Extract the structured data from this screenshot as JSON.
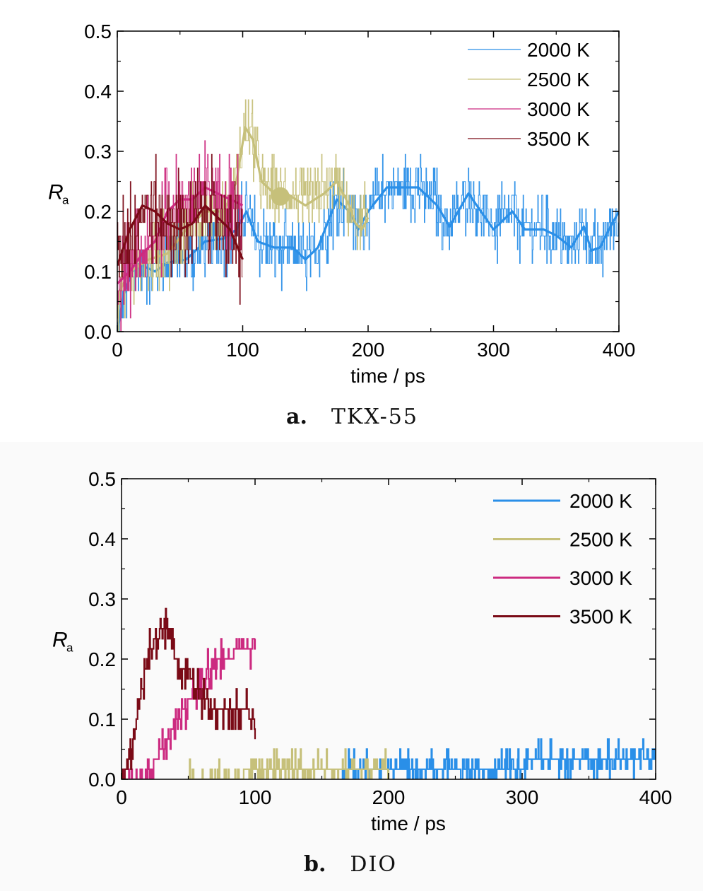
{
  "figure": {
    "caption_a": {
      "letter": "a.",
      "name": "TKX-55"
    },
    "caption_b": {
      "letter": "b.",
      "name": "DIO"
    }
  },
  "chart_data": [
    {
      "type": "line",
      "panel": "a",
      "xlabel": "time / ps",
      "ylabel": "R",
      "ylabel_sub": "a",
      "xlim": [
        0,
        400
      ],
      "ylim": [
        0.0,
        0.5
      ],
      "xticks": [
        "0",
        "100",
        "200",
        "300",
        "400"
      ],
      "yticks": [
        "0.0",
        "0.1",
        "0.2",
        "0.3",
        "0.4",
        "0.5"
      ],
      "grid": false,
      "legend_position": "top-right",
      "series": [
        {
          "name": "2000 K",
          "color": "#2a8fe8",
          "x_range": [
            0,
            400
          ],
          "noise": 0.045,
          "smooth_points": [
            [
              0,
              0.0
            ],
            [
              5,
              0.06
            ],
            [
              12,
              0.1
            ],
            [
              20,
              0.11
            ],
            [
              30,
              0.1
            ],
            [
              40,
              0.115
            ],
            [
              55,
              0.12
            ],
            [
              70,
              0.15
            ],
            [
              85,
              0.155
            ],
            [
              95,
              0.17
            ],
            [
              103,
              0.2
            ],
            [
              112,
              0.15
            ],
            [
              125,
              0.14
            ],
            [
              140,
              0.14
            ],
            [
              150,
              0.12
            ],
            [
              160,
              0.14
            ],
            [
              175,
              0.22
            ],
            [
              185,
              0.2
            ],
            [
              192,
              0.17
            ],
            [
              200,
              0.2
            ],
            [
              215,
              0.24
            ],
            [
              240,
              0.24
            ],
            [
              255,
              0.21
            ],
            [
              265,
              0.175
            ],
            [
              280,
              0.23
            ],
            [
              290,
              0.2
            ],
            [
              300,
              0.17
            ],
            [
              315,
              0.2
            ],
            [
              325,
              0.17
            ],
            [
              340,
              0.17
            ],
            [
              350,
              0.16
            ],
            [
              362,
              0.14
            ],
            [
              372,
              0.175
            ],
            [
              378,
              0.135
            ],
            [
              385,
              0.14
            ],
            [
              392,
              0.17
            ],
            [
              400,
              0.2
            ]
          ]
        },
        {
          "name": "2500 K",
          "color": "#c6c07a",
          "x_range": [
            0,
            200
          ],
          "noise": 0.05,
          "smooth_points": [
            [
              0,
              0.06
            ],
            [
              10,
              0.1
            ],
            [
              25,
              0.12
            ],
            [
              40,
              0.13
            ],
            [
              55,
              0.17
            ],
            [
              70,
              0.2
            ],
            [
              85,
              0.2
            ],
            [
              95,
              0.25
            ],
            [
              102,
              0.34
            ],
            [
              108,
              0.32
            ],
            [
              115,
              0.25
            ],
            [
              125,
              0.23
            ],
            [
              135,
              0.23
            ],
            [
              150,
              0.21
            ],
            [
              165,
              0.23
            ],
            [
              175,
              0.25
            ],
            [
              185,
              0.21
            ],
            [
              190,
              0.18
            ],
            [
              195,
              0.17
            ],
            [
              200,
              0.19
            ]
          ]
        },
        {
          "name": "3000 K",
          "color": "#cc2a80",
          "x_range": [
            0,
            100
          ],
          "noise": 0.06,
          "smooth_points": [
            [
              0,
              0.08
            ],
            [
              10,
              0.1
            ],
            [
              20,
              0.13
            ],
            [
              30,
              0.15
            ],
            [
              40,
              0.2
            ],
            [
              50,
              0.22
            ],
            [
              60,
              0.22
            ],
            [
              70,
              0.24
            ],
            [
              80,
              0.23
            ],
            [
              90,
              0.22
            ],
            [
              100,
              0.21
            ]
          ]
        },
        {
          "name": "3500 K",
          "color": "#7a0a16",
          "x_range": [
            0,
            100
          ],
          "noise": 0.07,
          "smooth_points": [
            [
              0,
              0.11
            ],
            [
              10,
              0.17
            ],
            [
              20,
              0.21
            ],
            [
              30,
              0.2
            ],
            [
              40,
              0.18
            ],
            [
              50,
              0.17
            ],
            [
              60,
              0.18
            ],
            [
              70,
              0.21
            ],
            [
              80,
              0.19
            ],
            [
              90,
              0.17
            ],
            [
              100,
              0.12
            ]
          ]
        }
      ]
    },
    {
      "type": "line",
      "panel": "b",
      "xlabel": "time / ps",
      "ylabel": "R",
      "ylabel_sub": "a",
      "xlim": [
        0,
        400
      ],
      "ylim": [
        0.0,
        0.5
      ],
      "xticks": [
        "0",
        "100",
        "200",
        "300",
        "400"
      ],
      "yticks": [
        "0.0",
        "0.1",
        "0.2",
        "0.3",
        "0.4",
        "0.5"
      ],
      "grid": false,
      "legend_position": "top-right",
      "series": [
        {
          "name": "2000 K",
          "color": "#2a8fe8",
          "x_range": [
            165,
            400
          ],
          "base_points": [
            [
              165,
              0.0
            ],
            [
              170,
              0.017
            ],
            [
              300,
              0.017
            ],
            [
              302,
              0.033
            ],
            [
              400,
              0.033
            ]
          ],
          "flicker": 0.017
        },
        {
          "name": "2500 K",
          "color": "#c6c07a",
          "x_range": [
            50,
            200
          ],
          "base_points": [
            [
              50,
              0.0
            ],
            [
              90,
              0.0
            ],
            [
              92,
              0.017
            ],
            [
              195,
              0.017
            ],
            [
              198,
              0.02
            ],
            [
              200,
              0.02
            ]
          ],
          "flicker": 0.017
        },
        {
          "name": "3000 K",
          "color": "#cc2a80",
          "x_range": [
            0,
            100
          ],
          "base_points": [
            [
              0,
              0.0
            ],
            [
              15,
              0.0
            ],
            [
              25,
              0.03
            ],
            [
              35,
              0.07
            ],
            [
              45,
              0.11
            ],
            [
              55,
              0.15
            ],
            [
              65,
              0.18
            ],
            [
              75,
              0.2
            ],
            [
              85,
              0.21
            ],
            [
              100,
              0.21
            ]
          ],
          "flicker": 0.02
        },
        {
          "name": "3500 K",
          "color": "#7a0a16",
          "x_range": [
            0,
            100
          ],
          "base_points": [
            [
              0,
              0.0
            ],
            [
              5,
              0.02
            ],
            [
              10,
              0.08
            ],
            [
              15,
              0.15
            ],
            [
              20,
              0.21
            ],
            [
              30,
              0.25
            ],
            [
              35,
              0.24
            ],
            [
              40,
              0.2
            ],
            [
              50,
              0.17
            ],
            [
              60,
              0.14
            ],
            [
              70,
              0.11
            ],
            [
              80,
              0.11
            ],
            [
              90,
              0.11
            ],
            [
              95,
              0.12
            ],
            [
              100,
              0.08
            ]
          ],
          "flicker": 0.02
        }
      ]
    }
  ]
}
